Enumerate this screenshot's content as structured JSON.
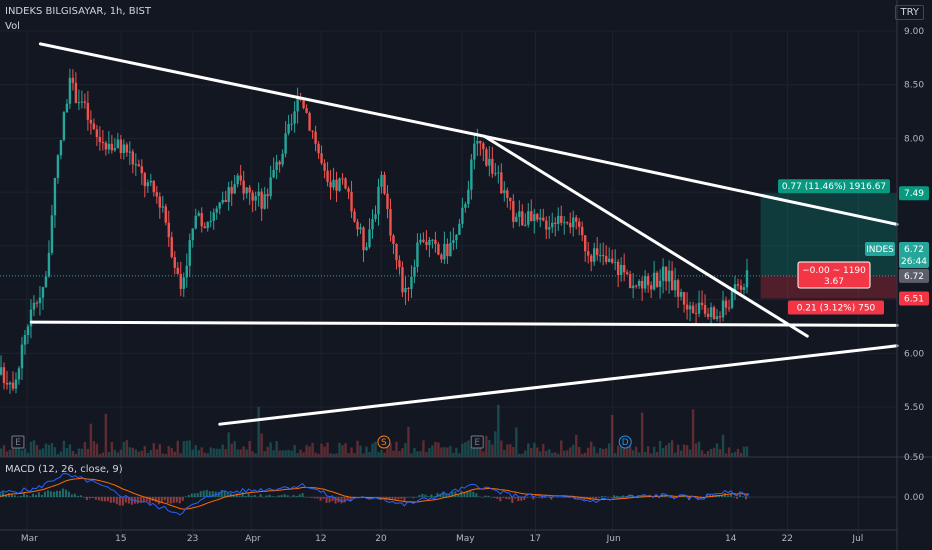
{
  "header": {
    "title": "INDEKS BILGISAYAR, 1h, BIST",
    "volume_label": "Vol",
    "currency": "TRY"
  },
  "macd_label": "MACD (12, 26, close, 9)",
  "colors": {
    "up": "#26a69a",
    "down": "#ef5350",
    "macd": "#2962ff",
    "signal": "#ff6d00"
  },
  "chart_data": {
    "type": "candlestick",
    "title": "INDEKS BILGISAYAR, 1h, BIST",
    "y_ticks": [
      "9.00",
      "8.50",
      "8.00",
      "7.50",
      "7.00",
      "6.50",
      "6.00",
      "5.50"
    ],
    "ylim": [
      5.34,
      9.06
    ],
    "x_ticks": [
      "Mar",
      "15",
      "23",
      "Apr",
      "12",
      "20",
      "May",
      "17",
      "Jun",
      "14",
      "22",
      "Jul"
    ],
    "macd_ticks": [
      "0.50",
      "0.00"
    ],
    "price_path": [
      {
        "x": 0,
        "v": 5.8
      },
      {
        "x": 0.015,
        "v": 5.75
      },
      {
        "x": 0.03,
        "v": 6.3
      },
      {
        "x": 0.05,
        "v": 6.7
      },
      {
        "x": 0.062,
        "v": 7.7
      },
      {
        "x": 0.075,
        "v": 8.5
      },
      {
        "x": 0.09,
        "v": 8.35
      },
      {
        "x": 0.105,
        "v": 8.0
      },
      {
        "x": 0.14,
        "v": 7.9
      },
      {
        "x": 0.16,
        "v": 7.6
      },
      {
        "x": 0.18,
        "v": 7.4
      },
      {
        "x": 0.2,
        "v": 6.6
      },
      {
        "x": 0.215,
        "v": 7.2
      },
      {
        "x": 0.24,
        "v": 7.3
      },
      {
        "x": 0.265,
        "v": 7.6
      },
      {
        "x": 0.29,
        "v": 7.4
      },
      {
        "x": 0.31,
        "v": 7.8
      },
      {
        "x": 0.335,
        "v": 8.4
      },
      {
        "x": 0.35,
        "v": 8.0
      },
      {
        "x": 0.365,
        "v": 7.5
      },
      {
        "x": 0.38,
        "v": 7.6
      },
      {
        "x": 0.405,
        "v": 7.0
      },
      {
        "x": 0.425,
        "v": 7.6
      },
      {
        "x": 0.44,
        "v": 6.9
      },
      {
        "x": 0.45,
        "v": 6.55
      },
      {
        "x": 0.47,
        "v": 7.1
      },
      {
        "x": 0.49,
        "v": 6.9
      },
      {
        "x": 0.51,
        "v": 7.1
      },
      {
        "x": 0.53,
        "v": 8.0
      },
      {
        "x": 0.55,
        "v": 7.7
      },
      {
        "x": 0.57,
        "v": 7.3
      },
      {
        "x": 0.6,
        "v": 7.2
      },
      {
        "x": 0.63,
        "v": 7.3
      },
      {
        "x": 0.66,
        "v": 6.9
      },
      {
        "x": 0.69,
        "v": 6.8
      },
      {
        "x": 0.71,
        "v": 6.6
      },
      {
        "x": 0.74,
        "v": 6.75
      },
      {
        "x": 0.77,
        "v": 6.4
      },
      {
        "x": 0.8,
        "v": 6.35
      },
      {
        "x": 0.82,
        "v": 6.6
      },
      {
        "x": 0.835,
        "v": 6.72
      }
    ],
    "macd_path": [
      {
        "x": 0,
        "v": 0.05
      },
      {
        "x": 0.04,
        "v": 0.1
      },
      {
        "x": 0.07,
        "v": 0.28
      },
      {
        "x": 0.1,
        "v": 0.2
      },
      {
        "x": 0.14,
        "v": 0.0
      },
      {
        "x": 0.2,
        "v": -0.2
      },
      {
        "x": 0.24,
        "v": 0.05
      },
      {
        "x": 0.3,
        "v": 0.1
      },
      {
        "x": 0.34,
        "v": 0.15
      },
      {
        "x": 0.38,
        "v": -0.05
      },
      {
        "x": 0.42,
        "v": 0.0
      },
      {
        "x": 0.45,
        "v": -0.1
      },
      {
        "x": 0.5,
        "v": 0.05
      },
      {
        "x": 0.53,
        "v": 0.15
      },
      {
        "x": 0.57,
        "v": 0.02
      },
      {
        "x": 0.62,
        "v": 0.0
      },
      {
        "x": 0.66,
        "v": -0.05
      },
      {
        "x": 0.7,
        "v": 0.0
      },
      {
        "x": 0.74,
        "v": 0.02
      },
      {
        "x": 0.78,
        "v": -0.02
      },
      {
        "x": 0.8,
        "v": 0.06
      },
      {
        "x": 0.835,
        "v": 0.03
      }
    ],
    "trendlines": [
      {
        "x1": 0.045,
        "v1": 8.88,
        "x2": 0.54,
        "v2": 8.02
      },
      {
        "x1": 0.54,
        "v1": 8.02,
        "x2": 1.0,
        "v2": 7.2
      },
      {
        "x1": 0.54,
        "v1": 8.02,
        "x2": 0.9,
        "v2": 6.16
      },
      {
        "x1": 0.035,
        "v1": 6.29,
        "x2": 1.0,
        "v2": 6.26
      },
      {
        "x1": 0.245,
        "v1": 5.34,
        "x2": 1.0,
        "v2": 6.07
      }
    ],
    "events": [
      {
        "label": "E",
        "x": 0.02,
        "type": "earnings"
      },
      {
        "label": "S",
        "x": 0.428,
        "type": "split"
      },
      {
        "label": "E",
        "x": 0.532,
        "type": "earnings"
      },
      {
        "label": "D",
        "x": 0.697,
        "type": "dividend"
      }
    ],
    "position": {
      "target_label": "0.77 (11.46%) 1916.67",
      "stop_label": "0.21 (3.12%) 750",
      "pnl_label_1": "−0.00 ~ 1190",
      "pnl_label_2": "3.67",
      "entry": 6.72,
      "target": 7.49,
      "stop": 6.51
    },
    "price_labels": {
      "target": "7.49",
      "symbol": "INDES",
      "last": "6.72",
      "countdown": "26:44",
      "entry": "6.72",
      "stop": "6.51"
    }
  }
}
